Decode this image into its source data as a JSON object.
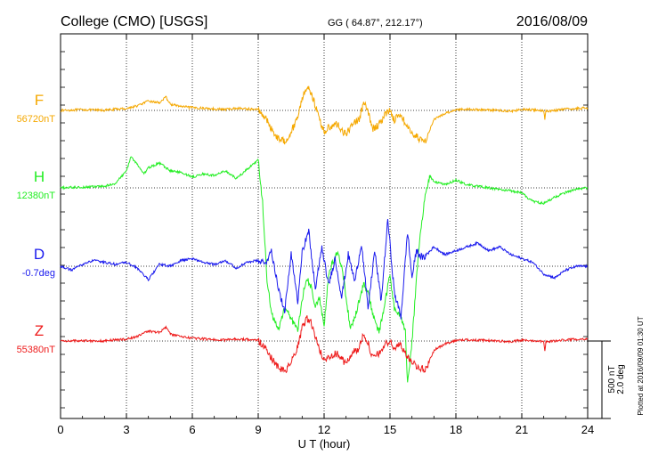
{
  "header": {
    "station": "College (CMO)  [USGS]",
    "coords": "GG ( 64.87°, 212.17°)",
    "date": "2016/08/09"
  },
  "chart_data": {
    "type": "line",
    "title": "College (CMO)  [USGS]",
    "xlabel": "U T (hour)",
    "ylabel": "",
    "xlim": [
      0,
      24
    ],
    "x_ticks": [
      0,
      3,
      6,
      9,
      12,
      15,
      18,
      21,
      24
    ],
    "x_tick_labels": [
      "0",
      "3",
      "6",
      "9",
      "12",
      "15",
      "18",
      "21",
      "24"
    ],
    "grid": true,
    "scale_bar": {
      "nT": 500,
      "deg": 2.0,
      "label_nT": "500 nT",
      "label_deg": "2.0 deg"
    },
    "footer": "Plotted at 2016/09/09 01:30 UT",
    "series": [
      {
        "name": "F",
        "baseline_label": "56720nT",
        "color": "#f5a800",
        "x": [
          0,
          1,
          2,
          2.5,
          3,
          3.5,
          4,
          4.5,
          4.8,
          5,
          5.5,
          6,
          6.5,
          7,
          7.5,
          8,
          8.5,
          9,
          9.3,
          9.6,
          9.9,
          10.2,
          10.5,
          10.8,
          11,
          11.2,
          11.4,
          11.6,
          11.8,
          12,
          12.3,
          12.6,
          13,
          13.3,
          13.6,
          13.8,
          14,
          14.2,
          14.5,
          14.8,
          15,
          15.2,
          15.5,
          15.8,
          16,
          16.3,
          16.6,
          17,
          17.5,
          18,
          18.5,
          19,
          19.5,
          20,
          20.5,
          21,
          21.5,
          22,
          22.05,
          22.1,
          22.5,
          23,
          23.5,
          24
        ],
        "values": [
          0,
          5,
          0,
          8,
          12,
          30,
          60,
          50,
          85,
          40,
          25,
          18,
          14,
          10,
          6,
          14,
          10,
          5,
          -40,
          -120,
          -180,
          -200,
          -140,
          -40,
          80,
          150,
          120,
          30,
          -60,
          -140,
          -100,
          -90,
          -160,
          -80,
          -60,
          50,
          -10,
          -120,
          -90,
          -20,
          0,
          -60,
          -20,
          -120,
          -140,
          -180,
          -200,
          -60,
          -20,
          5,
          8,
          5,
          3,
          0,
          -5,
          5,
          3,
          -2,
          -60,
          -5,
          0,
          8,
          12,
          15
        ]
      },
      {
        "name": "H",
        "baseline_label": "12380nT",
        "color": "#22ee22",
        "x": [
          0,
          1,
          2,
          2.5,
          3,
          3.2,
          3.5,
          3.8,
          4,
          4.5,
          5,
          5.5,
          6,
          6.5,
          7,
          7.5,
          8,
          8.5,
          9,
          9.2,
          9.4,
          9.6,
          9.9,
          10.2,
          10.5,
          10.8,
          11,
          11.2,
          11.4,
          11.6,
          11.8,
          12,
          12.2,
          12.4,
          12.6,
          12.8,
          13,
          13.2,
          13.5,
          13.8,
          14,
          14.2,
          14.5,
          14.8,
          15,
          15.2,
          15.5,
          15.7,
          15.8,
          16,
          16.2,
          16.4,
          16.6,
          16.8,
          17,
          17.5,
          18,
          18.5,
          19,
          19.5,
          20,
          20.5,
          21,
          21.3,
          21.6,
          22,
          22.5,
          23,
          23.5,
          24
        ],
        "values": [
          0,
          5,
          10,
          30,
          110,
          200,
          150,
          90,
          130,
          160,
          110,
          100,
          70,
          90,
          80,
          110,
          60,
          120,
          180,
          -100,
          -600,
          -800,
          -920,
          -780,
          -840,
          -920,
          -720,
          -580,
          -640,
          -760,
          -720,
          -900,
          -560,
          -480,
          -420,
          -500,
          -700,
          -920,
          -780,
          -620,
          -680,
          -800,
          -940,
          -720,
          -560,
          -780,
          -840,
          -920,
          -1260,
          -1000,
          -600,
          -260,
          -60,
          80,
          40,
          20,
          50,
          20,
          10,
          0,
          -10,
          -20,
          -30,
          -70,
          -90,
          -100,
          -60,
          -30,
          -10,
          0
        ]
      },
      {
        "name": "D",
        "baseline_label": "-0.7deg",
        "color": "#1a1aee",
        "x": [
          0,
          0.5,
          1,
          1.5,
          2,
          2.5,
          3,
          3.5,
          4,
          4.5,
          5,
          5.5,
          6,
          6.5,
          7,
          7.5,
          8,
          8.5,
          9,
          9.3,
          9.6,
          9.9,
          10.2,
          10.5,
          10.8,
          11,
          11.3,
          11.6,
          11.9,
          12.2,
          12.5,
          12.8,
          13.1,
          13.4,
          13.7,
          14,
          14.3,
          14.6,
          14.9,
          15.2,
          15.5,
          15.8,
          16,
          16.2,
          16.5,
          17,
          17.5,
          18,
          18.5,
          19,
          19.5,
          20,
          20.5,
          21,
          21.5,
          22,
          22.5,
          23,
          23.5,
          24
        ],
        "values": [
          0,
          -0.1,
          0.05,
          0.15,
          0.1,
          0.05,
          0.1,
          -0.05,
          -0.35,
          0.05,
          0,
          0.15,
          0.2,
          0.1,
          0.05,
          0.15,
          -0.05,
          0.1,
          0.15,
          0.05,
          0.4,
          -0.5,
          -1.2,
          0.3,
          -0.9,
          0.4,
          0.9,
          -0.6,
          0.5,
          -0.5,
          0.2,
          -0.8,
          0.3,
          -0.4,
          0.6,
          -1.1,
          0.4,
          -0.9,
          1.2,
          -0.7,
          -1.3,
          0.9,
          -0.3,
          0.4,
          0.2,
          0.5,
          0.3,
          0.4,
          0.5,
          0.6,
          0.4,
          0.5,
          0.3,
          0.2,
          0.1,
          -0.2,
          -0.3,
          -0.1,
          0,
          0
        ]
      },
      {
        "name": "Z",
        "baseline_label": "55380nT",
        "color": "#ee1a1a",
        "x": [
          0,
          1,
          2,
          2.5,
          3,
          3.5,
          4,
          4.5,
          4.8,
          5,
          5.5,
          6,
          6.5,
          7,
          7.5,
          8,
          8.5,
          9,
          9.3,
          9.6,
          9.9,
          10.2,
          10.5,
          10.8,
          11,
          11.2,
          11.4,
          11.6,
          11.8,
          12,
          12.3,
          12.6,
          13,
          13.3,
          13.6,
          13.8,
          14,
          14.2,
          14.5,
          14.8,
          15,
          15.2,
          15.5,
          15.8,
          16,
          16.3,
          16.6,
          17,
          17.5,
          18,
          18.5,
          19,
          19.5,
          20,
          20.5,
          21,
          21.5,
          22,
          22.05,
          22.1,
          22.5,
          23,
          23.5,
          24
        ],
        "values": [
          0,
          3,
          0,
          8,
          12,
          30,
          65,
          55,
          90,
          45,
          28,
          18,
          14,
          10,
          6,
          14,
          10,
          5,
          -40,
          -110,
          -170,
          -200,
          -140,
          -40,
          80,
          150,
          120,
          30,
          -60,
          -130,
          -90,
          -80,
          -150,
          -70,
          -50,
          50,
          -10,
          -110,
          -80,
          -20,
          0,
          -50,
          -20,
          -110,
          -130,
          -170,
          -190,
          -60,
          -20,
          5,
          8,
          5,
          3,
          0,
          -5,
          5,
          3,
          -2,
          -60,
          -5,
          0,
          8,
          12,
          15
        ]
      }
    ]
  }
}
